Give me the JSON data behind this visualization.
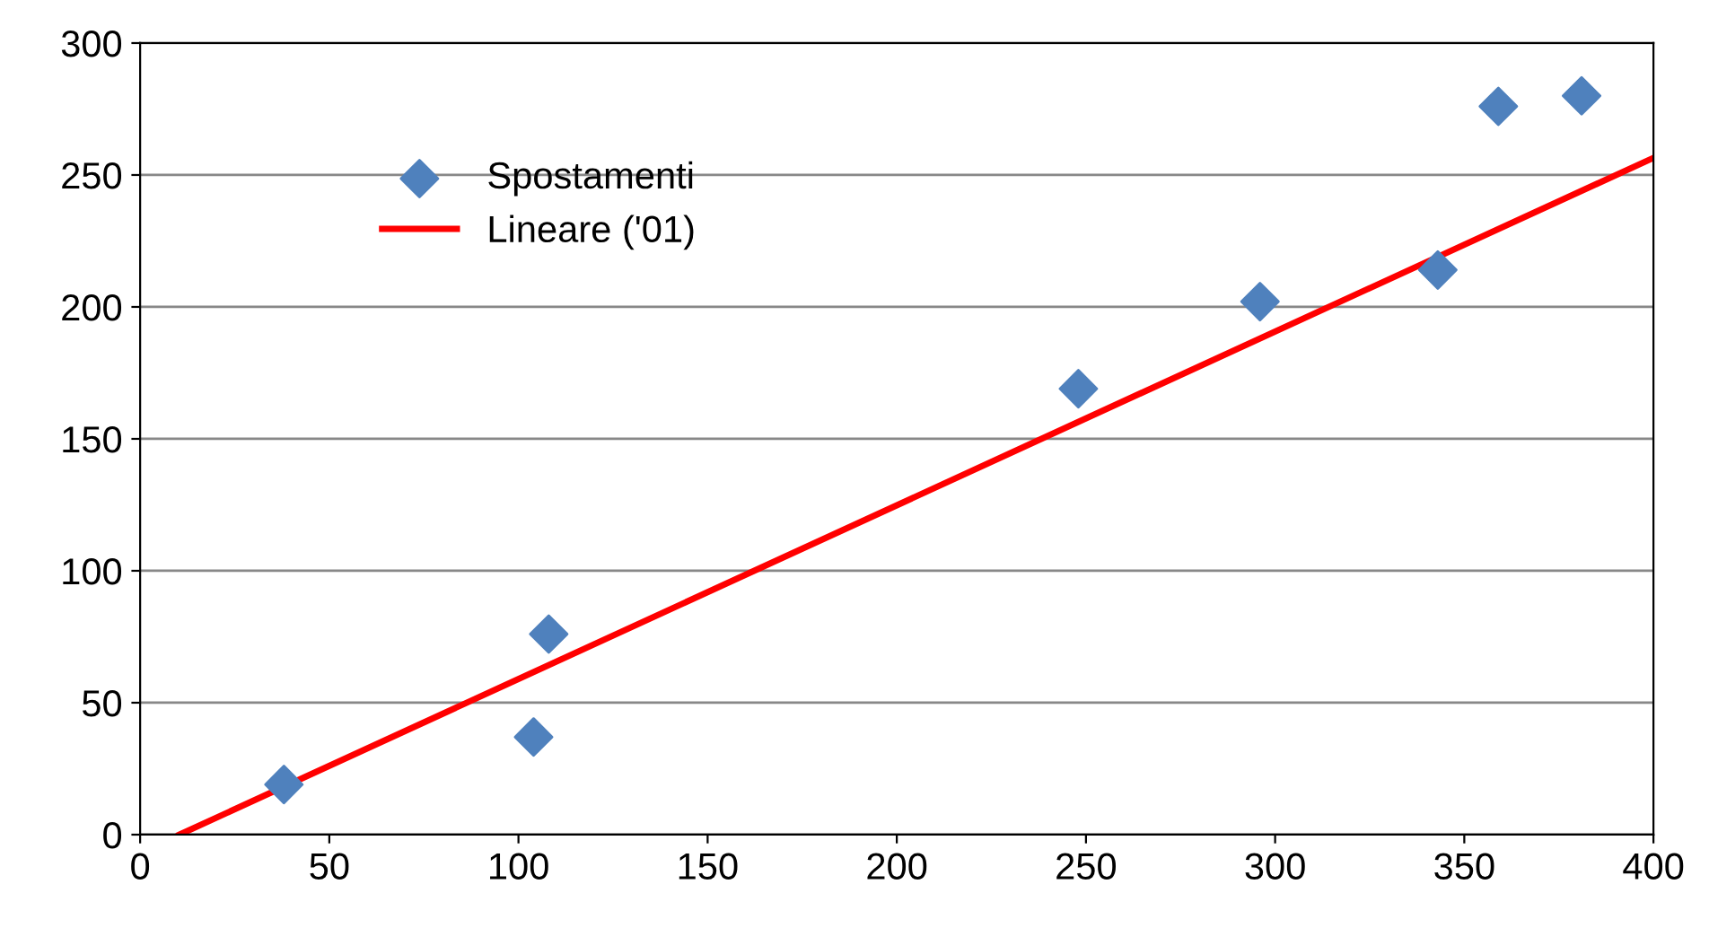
{
  "chart_data": {
    "type": "scatter",
    "xlim": [
      0,
      400
    ],
    "xticks": [
      0,
      50,
      100,
      150,
      200,
      250,
      300,
      350,
      400
    ],
    "ylim": [
      0,
      300
    ],
    "yticks": [
      0,
      50,
      100,
      150,
      200,
      250,
      300
    ],
    "grid": "y",
    "legend": "top left",
    "series": [
      {
        "name": "Spostamenti",
        "marker": "diamond",
        "color": "#4f81bd",
        "x": [
          38,
          104,
          108,
          248,
          296,
          343,
          359,
          381
        ],
        "values": [
          19,
          37,
          76,
          169,
          202,
          214,
          276,
          280
        ]
      },
      {
        "name": "Lineare ('01)",
        "type": "line",
        "marker": "none",
        "color": "#ff0000",
        "x": [
          10.4,
          400
        ],
        "values": [
          0,
          256.5
        ]
      }
    ]
  }
}
